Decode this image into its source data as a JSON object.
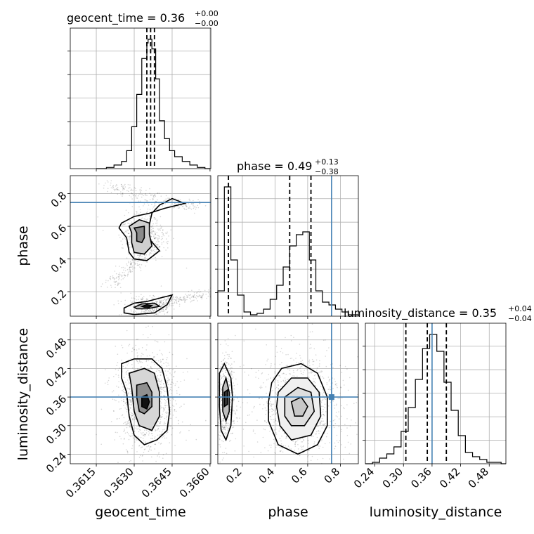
{
  "chart_data": {
    "type": "corner",
    "parameters": [
      "geocent_time",
      "phase",
      "luminosity_distance"
    ],
    "axis_labels": {
      "geocent_time": "geocent_time",
      "phase": "phase",
      "luminosity_distance": "luminosity_distance"
    },
    "titles": {
      "geocent_time": {
        "prefix": "geocent_time = 0.36",
        "plus": "+0.00",
        "minus": "−0.00"
      },
      "phase": {
        "prefix": "phase = 0.49",
        "plus": "+0.13",
        "minus": "−0.38"
      },
      "luminosity_distance": {
        "prefix": "luminosity_distance = 0.35",
        "plus": "+0.04",
        "minus": "−0.04"
      }
    },
    "ranges": {
      "geocent_time": [
        0.36047,
        0.36603
      ],
      "phase": [
        0.05,
        0.91
      ],
      "luminosity_distance": [
        0.22,
        0.515
      ]
    },
    "ticks": {
      "geocent_time": [
        {
          "v": 0.3615,
          "label": "0.3615"
        },
        {
          "v": 0.363,
          "label": "0.3630"
        },
        {
          "v": 0.3645,
          "label": "0.3645"
        },
        {
          "v": 0.366,
          "label": "0.3660"
        }
      ],
      "phase": [
        {
          "v": 0.2,
          "label": "0.2"
        },
        {
          "v": 0.4,
          "label": "0.4"
        },
        {
          "v": 0.6,
          "label": "0.6"
        },
        {
          "v": 0.8,
          "label": "0.8"
        }
      ],
      "luminosity_distance": [
        {
          "v": 0.24,
          "label": "0.24"
        },
        {
          "v": 0.3,
          "label": "0.30"
        },
        {
          "v": 0.36,
          "label": "0.36"
        },
        {
          "v": 0.42,
          "label": "0.42"
        },
        {
          "v": 0.48,
          "label": "0.48"
        }
      ]
    },
    "truths": {
      "geocent_time": null,
      "phase": 0.746,
      "luminosity_distance": 0.36
    },
    "quantiles": {
      "geocent_time": [
        0.3635,
        0.36365,
        0.3638
      ],
      "phase": [
        0.115,
        0.49,
        0.62
      ],
      "luminosity_distance": [
        0.305,
        0.35,
        0.39
      ]
    },
    "histograms": {
      "geocent_time": {
        "edges": [
          0.3615,
          0.3619,
          0.3622,
          0.3625,
          0.3627,
          0.3629,
          0.3631,
          0.3633,
          0.3635,
          0.36355,
          0.3637,
          0.36385,
          0.364,
          0.3642,
          0.3644,
          0.3646,
          0.3649,
          0.3652,
          0.3655,
          0.3658,
          0.366
        ],
        "counts": [
          0,
          1,
          3,
          6,
          15,
          35,
          62,
          92,
          105,
          108,
          100,
          75,
          40,
          25,
          15,
          10,
          6,
          3,
          1,
          0
        ]
      },
      "phase": {
        "edges": [
          0.05,
          0.09,
          0.13,
          0.17,
          0.21,
          0.25,
          0.29,
          0.33,
          0.37,
          0.41,
          0.45,
          0.49,
          0.53,
          0.57,
          0.61,
          0.65,
          0.69,
          0.73,
          0.77,
          0.81,
          0.85,
          0.91
        ],
        "counts": [
          18,
          92,
          40,
          15,
          3,
          1,
          2,
          5,
          12,
          22,
          35,
          50,
          58,
          60,
          40,
          18,
          10,
          8,
          5,
          3,
          1
        ]
      },
      "luminosity_distance": {
        "edges": [
          0.22,
          0.235,
          0.25,
          0.265,
          0.28,
          0.295,
          0.31,
          0.325,
          0.34,
          0.355,
          0.37,
          0.385,
          0.4,
          0.415,
          0.43,
          0.445,
          0.46,
          0.475,
          0.49,
          0.505,
          0.515
        ],
        "counts": [
          0,
          1,
          4,
          7,
          12,
          23,
          40,
          60,
          82,
          92,
          80,
          58,
          38,
          20,
          8,
          5,
          3,
          1,
          1,
          0
        ]
      }
    },
    "density_2d": {
      "phase_vs_geocent_time": {
        "levels": [
          [
            [
              0.3625,
              0.62
            ],
            [
              0.363,
              0.66
            ],
            [
              0.3636,
              0.68
            ],
            [
              0.3642,
              0.71
            ],
            [
              0.365,
              0.74
            ],
            [
              0.3645,
              0.77
            ],
            [
              0.364,
              0.73
            ],
            [
              0.3637,
              0.68
            ],
            [
              0.3635,
              0.54
            ],
            [
              0.364,
              0.45
            ],
            [
              0.3635,
              0.39
            ],
            [
              0.363,
              0.4
            ],
            [
              0.3628,
              0.44
            ],
            [
              0.3627,
              0.53
            ],
            [
              0.3624,
              0.59
            ]
          ],
          [
            [
              0.3628,
              0.6
            ],
            [
              0.3632,
              0.64
            ],
            [
              0.3636,
              0.62
            ],
            [
              0.3636,
              0.55
            ],
            [
              0.3637,
              0.48
            ],
            [
              0.3634,
              0.43
            ],
            [
              0.363,
              0.44
            ],
            [
              0.3629,
              0.5
            ],
            [
              0.3629,
              0.56
            ]
          ],
          [
            [
              0.363,
              0.59
            ],
            [
              0.3634,
              0.6
            ],
            [
              0.3634,
              0.53
            ],
            [
              0.3633,
              0.5
            ],
            [
              0.3631,
              0.51
            ],
            [
              0.3631,
              0.56
            ]
          ],
          [
            [
              0.3626,
              0.1
            ],
            [
              0.363,
              0.13
            ],
            [
              0.3635,
              0.14
            ],
            [
              0.364,
              0.16
            ],
            [
              0.3645,
              0.18
            ],
            [
              0.3643,
              0.12
            ],
            [
              0.3638,
              0.07
            ],
            [
              0.363,
              0.06
            ],
            [
              0.3626,
              0.07
            ]
          ],
          [
            [
              0.363,
              0.105
            ],
            [
              0.3633,
              0.125
            ],
            [
              0.3638,
              0.13
            ],
            [
              0.364,
              0.11
            ],
            [
              0.3635,
              0.095
            ],
            [
              0.3631,
              0.095
            ]
          ],
          [
            [
              0.3633,
              0.11
            ],
            [
              0.3635,
              0.12
            ],
            [
              0.3637,
              0.115
            ],
            [
              0.3636,
              0.105
            ],
            [
              0.3634,
              0.105
            ]
          ]
        ]
      },
      "luminosity_distance_vs_geocent_time": {
        "levels": [
          [
            [
              0.3625,
              0.43
            ],
            [
              0.363,
              0.44
            ],
            [
              0.3637,
              0.44
            ],
            [
              0.3641,
              0.42
            ],
            [
              0.3643,
              0.38
            ],
            [
              0.3644,
              0.33
            ],
            [
              0.3643,
              0.29
            ],
            [
              0.3639,
              0.27
            ],
            [
              0.3634,
              0.26
            ],
            [
              0.363,
              0.28
            ],
            [
              0.3628,
              0.32
            ],
            [
              0.3627,
              0.37
            ],
            [
              0.3625,
              0.4
            ]
          ],
          [
            [
              0.3628,
              0.41
            ],
            [
              0.3634,
              0.42
            ],
            [
              0.3638,
              0.41
            ],
            [
              0.364,
              0.37
            ],
            [
              0.364,
              0.32
            ],
            [
              0.3637,
              0.29
            ],
            [
              0.3632,
              0.3
            ],
            [
              0.363,
              0.33
            ],
            [
              0.3629,
              0.38
            ]
          ],
          [
            [
              0.3631,
              0.385
            ],
            [
              0.3635,
              0.39
            ],
            [
              0.3637,
              0.37
            ],
            [
              0.3637,
              0.34
            ],
            [
              0.3634,
              0.325
            ],
            [
              0.3632,
              0.33
            ],
            [
              0.3631,
              0.36
            ]
          ],
          [
            [
              0.3633,
              0.36
            ],
            [
              0.3635,
              0.365
            ],
            [
              0.3636,
              0.35
            ],
            [
              0.3635,
              0.335
            ],
            [
              0.3633,
              0.34
            ]
          ]
        ]
      },
      "luminosity_distance_vs_phase": {
        "levels": [
          [
            [
              0.06,
              0.41
            ],
            [
              0.09,
              0.43
            ],
            [
              0.13,
              0.4
            ],
            [
              0.14,
              0.36
            ],
            [
              0.13,
              0.3
            ],
            [
              0.1,
              0.27
            ],
            [
              0.07,
              0.29
            ],
            [
              0.06,
              0.34
            ]
          ],
          [
            [
              0.08,
              0.38
            ],
            [
              0.1,
              0.4
            ],
            [
              0.12,
              0.37
            ],
            [
              0.12,
              0.33
            ],
            [
              0.1,
              0.31
            ],
            [
              0.08,
              0.33
            ]
          ],
          [
            [
              0.09,
              0.37
            ],
            [
              0.11,
              0.375
            ],
            [
              0.11,
              0.345
            ],
            [
              0.09,
              0.34
            ]
          ],
          [
            [
              0.38,
              0.39
            ],
            [
              0.44,
              0.42
            ],
            [
              0.56,
              0.43
            ],
            [
              0.66,
              0.41
            ],
            [
              0.72,
              0.36
            ],
            [
              0.72,
              0.3
            ],
            [
              0.66,
              0.26
            ],
            [
              0.54,
              0.24
            ],
            [
              0.42,
              0.26
            ],
            [
              0.36,
              0.31
            ],
            [
              0.36,
              0.35
            ]
          ],
          [
            [
              0.42,
              0.37
            ],
            [
              0.5,
              0.4
            ],
            [
              0.6,
              0.4
            ],
            [
              0.67,
              0.37
            ],
            [
              0.68,
              0.32
            ],
            [
              0.62,
              0.28
            ],
            [
              0.5,
              0.27
            ],
            [
              0.43,
              0.3
            ],
            [
              0.41,
              0.34
            ]
          ],
          [
            [
              0.46,
              0.36
            ],
            [
              0.54,
              0.38
            ],
            [
              0.62,
              0.37
            ],
            [
              0.64,
              0.33
            ],
            [
              0.58,
              0.3
            ],
            [
              0.5,
              0.3
            ],
            [
              0.46,
              0.32
            ]
          ],
          [
            [
              0.5,
              0.35
            ],
            [
              0.56,
              0.36
            ],
            [
              0.6,
              0.34
            ],
            [
              0.57,
              0.32
            ],
            [
              0.52,
              0.32
            ]
          ]
        ]
      }
    }
  }
}
